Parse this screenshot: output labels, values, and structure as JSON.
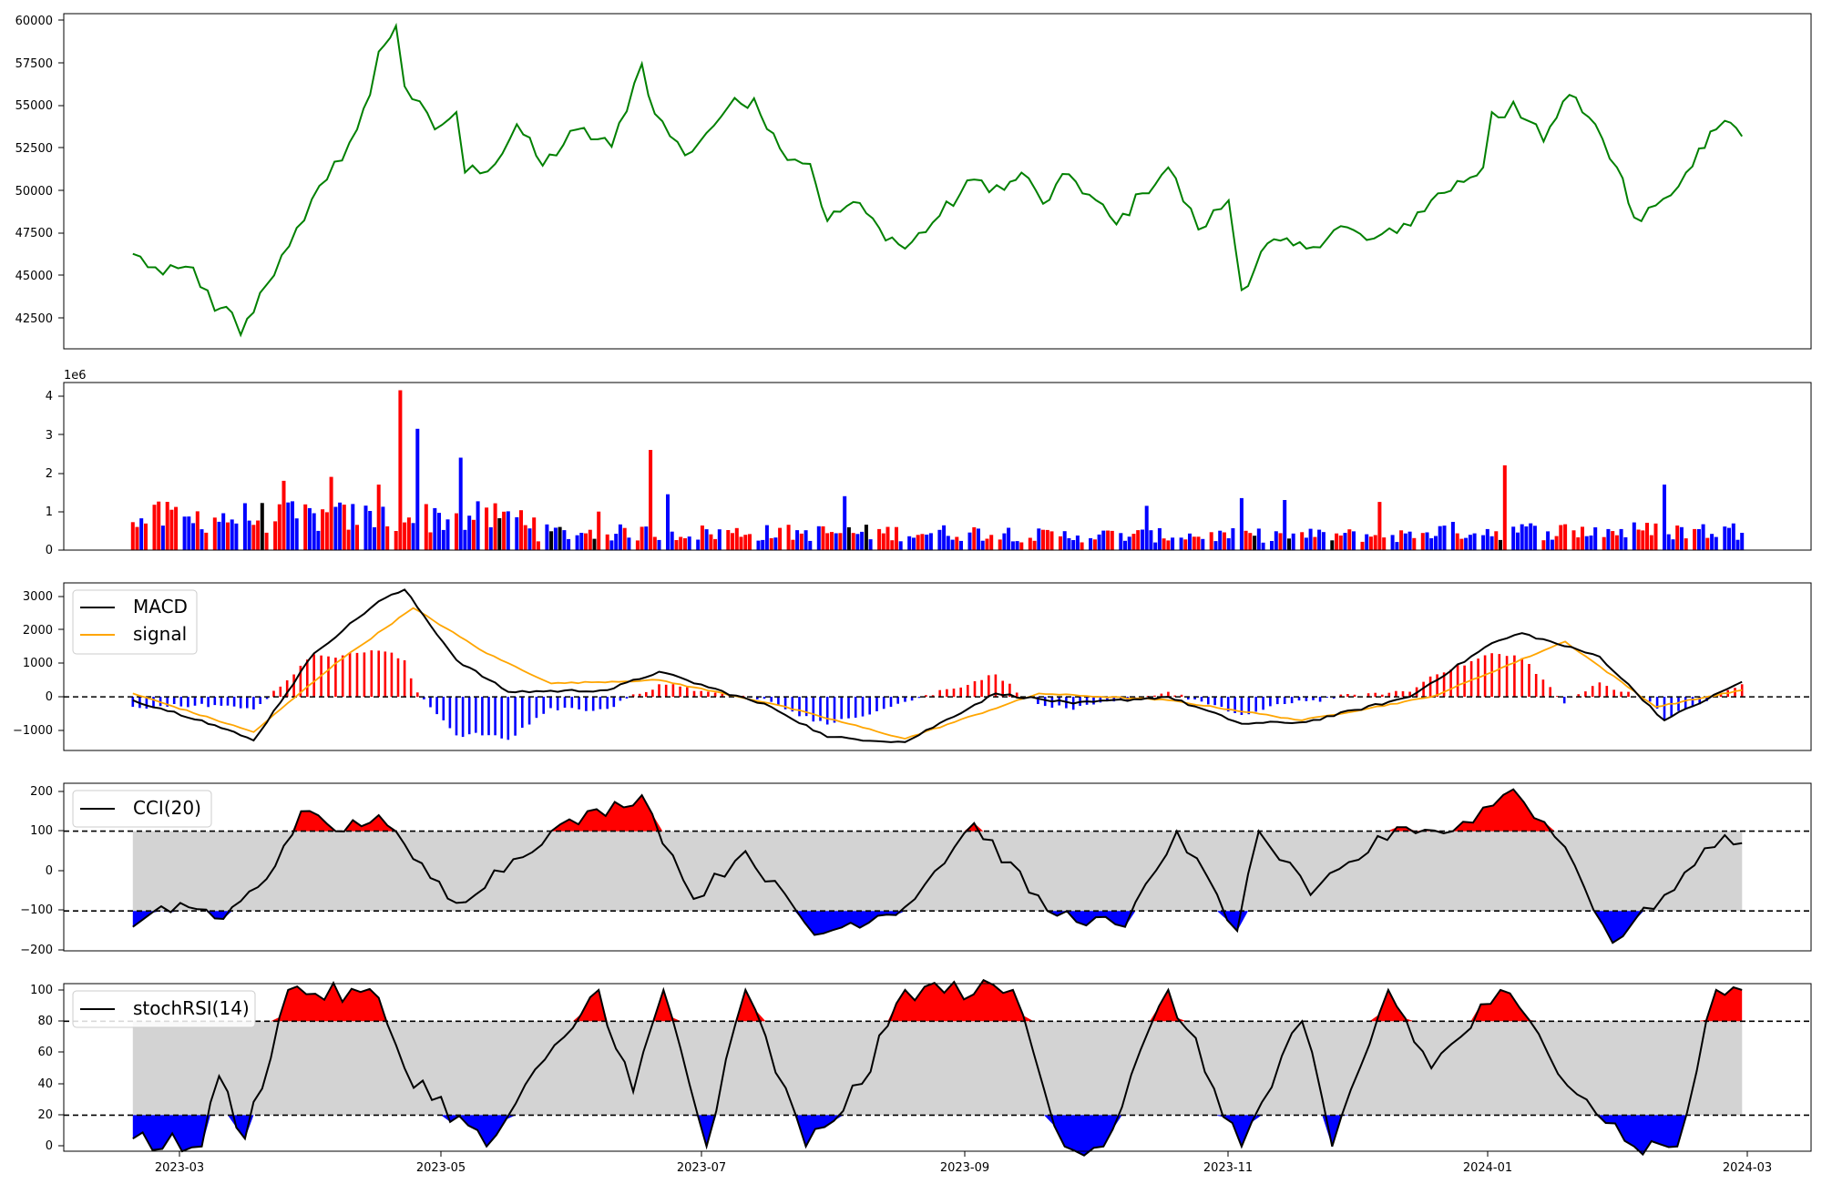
{
  "figure": {
    "x_ticks": [
      "2023-03",
      "2023-05",
      "2023-07",
      "2023-09",
      "2023-11",
      "2024-01",
      "2024-03"
    ]
  },
  "chart_data": [
    {
      "type": "line",
      "panel": "price",
      "ylim": [
        40800,
        60200
      ],
      "yticks": [
        "60000",
        "57500",
        "55000",
        "52500",
        "50000",
        "47500",
        "45000",
        "42500"
      ],
      "line_color": "#008000",
      "keypoints": [
        {
          "x": "2023-02-22",
          "y": 46300
        },
        {
          "x": "2023-03-01",
          "y": 45100
        },
        {
          "x": "2023-03-08",
          "y": 45500
        },
        {
          "x": "2023-03-13",
          "y": 43000
        },
        {
          "x": "2023-03-17",
          "y": 42900
        },
        {
          "x": "2023-03-19",
          "y": 41600
        },
        {
          "x": "2023-03-25",
          "y": 44500
        },
        {
          "x": "2023-04-01",
          "y": 47800
        },
        {
          "x": "2023-04-08",
          "y": 50600
        },
        {
          "x": "2023-04-15",
          "y": 53500
        },
        {
          "x": "2023-04-18",
          "y": 55500
        },
        {
          "x": "2023-04-20",
          "y": 58000
        },
        {
          "x": "2023-04-24",
          "y": 59500
        },
        {
          "x": "2023-04-26",
          "y": 56000
        },
        {
          "x": "2023-05-03",
          "y": 53500
        },
        {
          "x": "2023-05-08",
          "y": 54500
        },
        {
          "x": "2023-05-10",
          "y": 51000
        },
        {
          "x": "2023-05-17",
          "y": 51500
        },
        {
          "x": "2023-05-22",
          "y": 53800
        },
        {
          "x": "2023-05-28",
          "y": 51400
        },
        {
          "x": "2023-06-05",
          "y": 53500
        },
        {
          "x": "2023-06-13",
          "y": 52500
        },
        {
          "x": "2023-06-20",
          "y": 57300
        },
        {
          "x": "2023-06-23",
          "y": 54400
        },
        {
          "x": "2023-06-30",
          "y": 52000
        },
        {
          "x": "2023-07-05",
          "y": 53300
        },
        {
          "x": "2023-07-10",
          "y": 54800
        },
        {
          "x": "2023-07-16",
          "y": 55300
        },
        {
          "x": "2023-07-22",
          "y": 52400
        },
        {
          "x": "2023-07-29",
          "y": 51500
        },
        {
          "x": "2023-08-02",
          "y": 48200
        },
        {
          "x": "2023-08-08",
          "y": 49300
        },
        {
          "x": "2023-08-14",
          "y": 47800
        },
        {
          "x": "2023-08-20",
          "y": 46600
        },
        {
          "x": "2023-08-28",
          "y": 48500
        },
        {
          "x": "2023-09-05",
          "y": 50600
        },
        {
          "x": "2023-09-12",
          "y": 50000
        },
        {
          "x": "2023-09-16",
          "y": 51000
        },
        {
          "x": "2023-09-21",
          "y": 49200
        },
        {
          "x": "2023-09-27",
          "y": 50900
        },
        {
          "x": "2023-10-08",
          "y": 48000
        },
        {
          "x": "2023-10-14",
          "y": 49800
        },
        {
          "x": "2023-10-20",
          "y": 51300
        },
        {
          "x": "2023-10-27",
          "y": 47700
        },
        {
          "x": "2023-11-03",
          "y": 49400
        },
        {
          "x": "2023-11-06",
          "y": 44200
        },
        {
          "x": "2023-11-12",
          "y": 46900
        },
        {
          "x": "2023-11-21",
          "y": 46600
        },
        {
          "x": "2023-11-29",
          "y": 47900
        },
        {
          "x": "2023-12-05",
          "y": 47100
        },
        {
          "x": "2023-12-12",
          "y": 47500
        },
        {
          "x": "2023-12-20",
          "y": 49400
        },
        {
          "x": "2024-01-01",
          "y": 51300
        },
        {
          "x": "2024-01-03",
          "y": 54500
        },
        {
          "x": "2024-01-06",
          "y": 54200
        },
        {
          "x": "2024-01-08",
          "y": 55100
        },
        {
          "x": "2024-01-15",
          "y": 52800
        },
        {
          "x": "2024-01-21",
          "y": 55500
        },
        {
          "x": "2024-01-27",
          "y": 53800
        },
        {
          "x": "2024-02-01",
          "y": 51300
        },
        {
          "x": "2024-02-05",
          "y": 48400
        },
        {
          "x": "2024-02-10",
          "y": 49100
        },
        {
          "x": "2024-02-17",
          "y": 51000
        },
        {
          "x": "2024-02-20",
          "y": 52400
        },
        {
          "x": "2024-02-24",
          "y": 53500
        },
        {
          "x": "2024-02-26",
          "y": 54000
        },
        {
          "x": "2024-03-01",
          "y": 53100
        }
      ]
    },
    {
      "type": "bar",
      "panel": "volume",
      "scale_label": "1e6",
      "ylim": [
        0,
        4.35
      ],
      "yticks": [
        "0",
        "1",
        "2",
        "3",
        "4"
      ],
      "colors": {
        "up": "#ff0000",
        "down": "#0000ff",
        "flat": "#000000"
      },
      "bars": [
        {
          "x": "2023-02-23",
          "v": 0.6,
          "c": "up"
        },
        {
          "x": "2023-03-08",
          "v": 0.7,
          "c": "down"
        },
        {
          "x": "2023-03-29",
          "v": 1.8,
          "c": "up"
        },
        {
          "x": "2023-04-09",
          "v": 1.9,
          "c": "up"
        },
        {
          "x": "2023-04-20",
          "v": 1.7,
          "c": "up"
        },
        {
          "x": "2023-04-25",
          "v": 4.15,
          "c": "up"
        },
        {
          "x": "2023-04-29",
          "v": 3.15,
          "c": "down"
        },
        {
          "x": "2023-05-09",
          "v": 2.4,
          "c": "down"
        },
        {
          "x": "2023-06-10",
          "v": 1.0,
          "c": "up"
        },
        {
          "x": "2023-06-22",
          "v": 2.6,
          "c": "up"
        },
        {
          "x": "2023-06-26",
          "v": 1.45,
          "c": "down"
        },
        {
          "x": "2023-08-06",
          "v": 1.4,
          "c": "down"
        },
        {
          "x": "2023-10-15",
          "v": 1.15,
          "c": "down"
        },
        {
          "x": "2023-11-06",
          "v": 1.35,
          "c": "down"
        },
        {
          "x": "2023-11-16",
          "v": 1.3,
          "c": "down"
        },
        {
          "x": "2023-12-08",
          "v": 1.25,
          "c": "up"
        },
        {
          "x": "2024-01-06",
          "v": 2.2,
          "c": "up"
        },
        {
          "x": "2024-02-12",
          "v": 1.7,
          "c": "down"
        },
        {
          "x": "2024-03-01",
          "v": 0.45,
          "c": "down"
        }
      ]
    },
    {
      "type": "line",
      "panel": "macd",
      "ylim": [
        -1600,
        3400
      ],
      "yticks": [
        "3000",
        "2000",
        "1000",
        "0",
        "−1000"
      ],
      "legend": [
        "MACD",
        "signal"
      ],
      "colors": {
        "macd": "#000000",
        "signal": "#ffa500",
        "hist_pos": "#ff0000",
        "hist_neg": "#0000ff"
      },
      "macd": [
        {
          "x": "2023-02-22",
          "y": -100
        },
        {
          "x": "2023-03-10",
          "y": -700
        },
        {
          "x": "2023-03-22",
          "y": -1300
        },
        {
          "x": "2023-04-05",
          "y": 1300
        },
        {
          "x": "2023-04-20",
          "y": 2850
        },
        {
          "x": "2023-04-26",
          "y": 3200
        },
        {
          "x": "2023-05-08",
          "y": 1100
        },
        {
          "x": "2023-05-20",
          "y": 150
        },
        {
          "x": "2023-06-12",
          "y": 200
        },
        {
          "x": "2023-06-24",
          "y": 750
        },
        {
          "x": "2023-07-20",
          "y": -300
        },
        {
          "x": "2023-08-02",
          "y": -1200
        },
        {
          "x": "2023-08-20",
          "y": -1350
        },
        {
          "x": "2023-09-10",
          "y": 100
        },
        {
          "x": "2023-09-28",
          "y": -200
        },
        {
          "x": "2023-10-20",
          "y": 0
        },
        {
          "x": "2023-11-06",
          "y": -800
        },
        {
          "x": "2023-11-21",
          "y": -750
        },
        {
          "x": "2023-12-15",
          "y": 0
        },
        {
          "x": "2024-01-03",
          "y": 1600
        },
        {
          "x": "2024-01-10",
          "y": 1900
        },
        {
          "x": "2024-01-28",
          "y": 1200
        },
        {
          "x": "2024-02-12",
          "y": -700
        },
        {
          "x": "2024-03-01",
          "y": 450
        }
      ],
      "signal": [
        {
          "x": "2023-02-22",
          "y": 100
        },
        {
          "x": "2023-03-22",
          "y": -1050
        },
        {
          "x": "2023-04-10",
          "y": 1000
        },
        {
          "x": "2023-04-28",
          "y": 2650
        },
        {
          "x": "2023-05-15",
          "y": 1300
        },
        {
          "x": "2023-05-30",
          "y": 400
        },
        {
          "x": "2023-06-24",
          "y": 500
        },
        {
          "x": "2023-07-20",
          "y": -200
        },
        {
          "x": "2023-08-20",
          "y": -1250
        },
        {
          "x": "2023-09-20",
          "y": 100
        },
        {
          "x": "2023-10-20",
          "y": -100
        },
        {
          "x": "2023-11-20",
          "y": -700
        },
        {
          "x": "2023-12-20",
          "y": 0
        },
        {
          "x": "2024-01-20",
          "y": 1650
        },
        {
          "x": "2024-02-10",
          "y": -300
        },
        {
          "x": "2024-03-01",
          "y": 200
        }
      ]
    },
    {
      "type": "area",
      "panel": "cci",
      "ylim": [
        -200,
        220
      ],
      "yticks": [
        "200",
        "100",
        "0",
        "−100",
        "−200"
      ],
      "levels": [
        100,
        -100
      ],
      "legend": [
        "CCI(20)"
      ],
      "colors": {
        "line": "#000000",
        "above": "#ff0000",
        "below": "#0000ff",
        "band": "#d3d3d3"
      },
      "keypoints": [
        {
          "x": "2023-02-22",
          "y": -140
        },
        {
          "x": "2023-03-05",
          "y": -80
        },
        {
          "x": "2023-03-15",
          "y": -120
        },
        {
          "x": "2023-03-25",
          "y": -20
        },
        {
          "x": "2023-04-02",
          "y": 150
        },
        {
          "x": "2023-04-10",
          "y": 100
        },
        {
          "x": "2023-04-20",
          "y": 140
        },
        {
          "x": "2023-04-28",
          "y": 30
        },
        {
          "x": "2023-05-08",
          "y": -80
        },
        {
          "x": "2023-05-30",
          "y": 100
        },
        {
          "x": "2023-06-20",
          "y": 190
        },
        {
          "x": "2023-07-02",
          "y": -70
        },
        {
          "x": "2023-07-14",
          "y": 50
        },
        {
          "x": "2023-07-30",
          "y": -160
        },
        {
          "x": "2023-08-20",
          "y": -90
        },
        {
          "x": "2023-09-05",
          "y": 120
        },
        {
          "x": "2023-09-22",
          "y": -100
        },
        {
          "x": "2023-10-10",
          "y": -140
        },
        {
          "x": "2023-10-22",
          "y": 100
        },
        {
          "x": "2023-11-05",
          "y": -150
        },
        {
          "x": "2023-11-10",
          "y": 100
        },
        {
          "x": "2023-11-22",
          "y": -60
        },
        {
          "x": "2023-12-12",
          "y": 110
        },
        {
          "x": "2023-12-25",
          "y": 100
        },
        {
          "x": "2024-01-08",
          "y": 205
        },
        {
          "x": "2024-01-20",
          "y": 60
        },
        {
          "x": "2024-01-31",
          "y": -180
        },
        {
          "x": "2024-02-12",
          "y": -60
        },
        {
          "x": "2024-02-26",
          "y": 90
        },
        {
          "x": "2024-03-01",
          "y": 70
        }
      ]
    },
    {
      "type": "area",
      "panel": "stochrsi",
      "ylim": [
        -3,
        104
      ],
      "yticks": [
        "100",
        "80",
        "60",
        "40",
        "20",
        "0"
      ],
      "levels": [
        80,
        20
      ],
      "legend": [
        "stochRSI(14)"
      ],
      "colors": {
        "line": "#000000",
        "above": "#ff0000",
        "below": "#0000ff",
        "band": "#d3d3d3"
      },
      "keypoints": [
        {
          "x": "2023-02-22",
          "y": 5
        },
        {
          "x": "2023-03-10",
          "y": 0
        },
        {
          "x": "2023-03-14",
          "y": 45
        },
        {
          "x": "2023-03-20",
          "y": 5
        },
        {
          "x": "2023-03-30",
          "y": 100
        },
        {
          "x": "2023-04-20",
          "y": 95
        },
        {
          "x": "2023-04-26",
          "y": 50
        },
        {
          "x": "2023-05-15",
          "y": 0
        },
        {
          "x": "2023-06-02",
          "y": 70
        },
        {
          "x": "2023-06-10",
          "y": 100
        },
        {
          "x": "2023-06-18",
          "y": 35
        },
        {
          "x": "2023-06-25",
          "y": 100
        },
        {
          "x": "2023-07-05",
          "y": 0
        },
        {
          "x": "2023-07-14",
          "y": 100
        },
        {
          "x": "2023-07-28",
          "y": 0
        },
        {
          "x": "2023-08-10",
          "y": 40
        },
        {
          "x": "2023-08-20",
          "y": 100
        },
        {
          "x": "2023-09-14",
          "y": 100
        },
        {
          "x": "2023-09-26",
          "y": 0
        },
        {
          "x": "2023-10-05",
          "y": 0
        },
        {
          "x": "2023-10-20",
          "y": 100
        },
        {
          "x": "2023-11-06",
          "y": 0
        },
        {
          "x": "2023-11-20",
          "y": 80
        },
        {
          "x": "2023-11-27",
          "y": 0
        },
        {
          "x": "2023-12-10",
          "y": 100
        },
        {
          "x": "2023-12-20",
          "y": 50
        },
        {
          "x": "2024-01-05",
          "y": 100
        },
        {
          "x": "2024-01-25",
          "y": 30
        },
        {
          "x": "2024-02-05",
          "y": 0
        },
        {
          "x": "2024-02-15",
          "y": 0
        },
        {
          "x": "2024-02-24",
          "y": 100
        },
        {
          "x": "2024-03-01",
          "y": 100
        }
      ]
    }
  ]
}
